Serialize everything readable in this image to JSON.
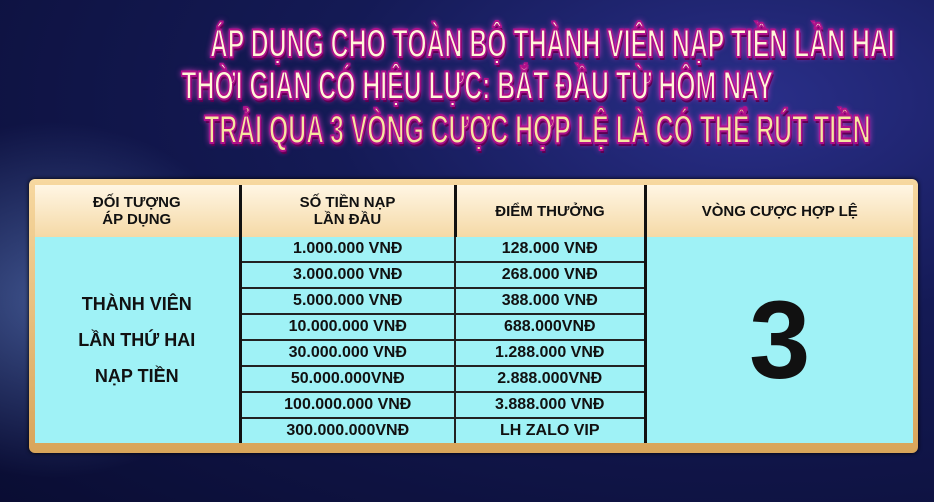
{
  "headline": {
    "line1": "ÁP DỤNG CHO TOÀN BỘ THÀNH VIÊN NẠP TIỀN LẦN HAI",
    "line2": "THỜI GIAN CÓ HIỆU LỰC: BẮT ĐẦU TỪ HÔM NAY",
    "line3": "TRẢI QUA 3 VÒNG CƯỢC HỢP LỆ LÀ CÓ THỂ RÚT TIỀN"
  },
  "table": {
    "headers": [
      "ĐỐI TƯỢNG\nÁP DỤNG",
      "SỐ TIỀN NẠP\nLẦN ĐẦU",
      "ĐIỂM THƯỞNG",
      "VÒNG CƯỢC HỢP LỆ"
    ],
    "target": [
      "THÀNH VIÊN",
      "LẦN THỨ HAI",
      "NẠP TIỀN"
    ],
    "rows": [
      {
        "deposit": "1.000.000 VNĐ",
        "bonus": "128.000 VNĐ"
      },
      {
        "deposit": "3.000.000 VNĐ",
        "bonus": "268.000 VNĐ"
      },
      {
        "deposit": "5.000.000 VNĐ",
        "bonus": "388.000 VNĐ"
      },
      {
        "deposit": "10.000.000 VNĐ",
        "bonus": "688.000VNĐ"
      },
      {
        "deposit": "30.000.000 VNĐ",
        "bonus": "1.288.000 VNĐ"
      },
      {
        "deposit": "50.000.000VNĐ",
        "bonus": "2.888.000VNĐ"
      },
      {
        "deposit": "100.000.000 VNĐ",
        "bonus": "3.888.000 VNĐ"
      },
      {
        "deposit": "300.000.000VNĐ",
        "bonus": "LH ZALO VIP"
      }
    ],
    "rounds": "3"
  },
  "colors": {
    "cell_bg": "#9ff2f6",
    "header_bg": "#f5d9a6",
    "title_glow": "#b0108a",
    "background": "#141a55"
  }
}
